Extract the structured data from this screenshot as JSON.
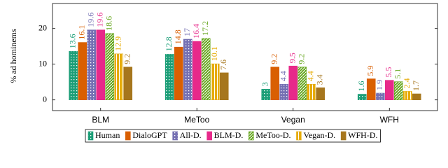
{
  "chart_data": {
    "type": "bar",
    "ylabel": "% ad hominems",
    "categories": [
      "BLM",
      "MeToo",
      "Vegan",
      "WFH"
    ],
    "ylim": [
      -3,
      27
    ],
    "yticks": [
      0,
      10,
      20
    ],
    "grid": false,
    "legend": "bottom",
    "series": [
      {
        "name": "Human",
        "color": "#1b9e77",
        "pattern": "dots",
        "values": [
          13.6,
          12.8,
          3,
          1.6
        ]
      },
      {
        "name": "DialoGPT",
        "color": "#d95f02",
        "values": [
          16.1,
          14.8,
          9.2,
          5.9
        ]
      },
      {
        "name": "All-D.",
        "color": "#7570b3",
        "pattern": "dots",
        "values": [
          19.6,
          17,
          4.4,
          1.9
        ]
      },
      {
        "name": "BLM-D.",
        "color": "#e7298a",
        "values": [
          19.6,
          16.4,
          9.5,
          5.5
        ]
      },
      {
        "name": "MeToo-D.",
        "color": "#66a61e",
        "pattern": "diagonal",
        "values": [
          18.6,
          17.2,
          9.2,
          5.1
        ]
      },
      {
        "name": "Vegan-D.",
        "color": "#e6ab02",
        "pattern": "vertical",
        "values": [
          12.9,
          10.1,
          4.4,
          2.4
        ]
      },
      {
        "name": "WFH-D.",
        "color": "#a6761d",
        "values": [
          9.2,
          7.6,
          3.4,
          1.7
        ]
      }
    ]
  }
}
